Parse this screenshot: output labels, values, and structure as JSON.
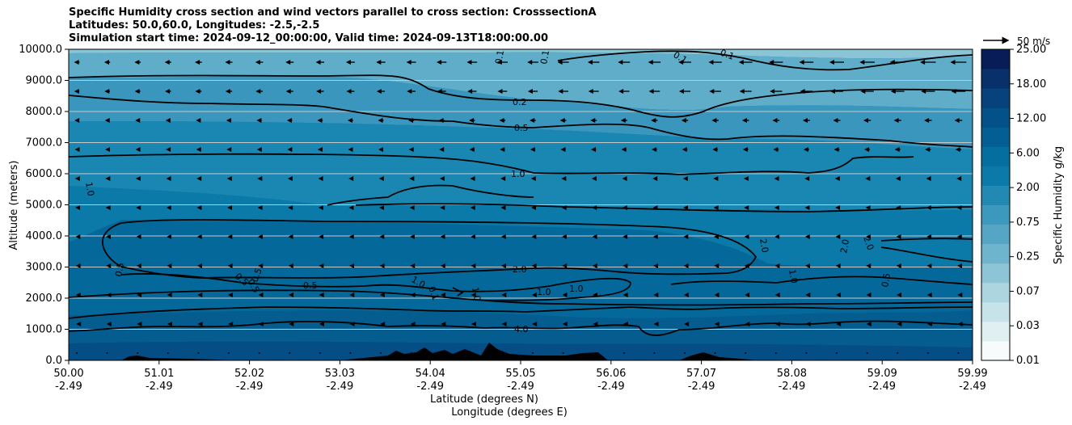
{
  "chart_data": {
    "type": "contourf",
    "title_lines": [
      "Specific Humidity cross section and wind vectors parallel to cross section: CrosssectionA",
      "Latitudes: 50.0,60.0, Longitudes: -2.5,-2.5",
      "Simulation start time: 2024-09-12_00:00:00, Valid time: 2024-09-13T18:00:00.00"
    ],
    "ylabel": "Altitude (meters)",
    "xlabel_lines": [
      "Latitude (degrees N)",
      "Longitude (degrees E)"
    ],
    "ylim": [
      0,
      10000
    ],
    "yticks": [
      "0.0",
      "1000.0",
      "2000.0",
      "3000.0",
      "4000.0",
      "5000.0",
      "6000.0",
      "7000.0",
      "8000.0",
      "9000.0",
      "10000.0"
    ],
    "xticks_lat": [
      "50.00",
      "51.01",
      "52.02",
      "53.03",
      "54.04",
      "55.05",
      "56.06",
      "57.07",
      "58.08",
      "59.09",
      "59.99"
    ],
    "xticks_lon": [
      "-2.49",
      "-2.49",
      "-2.49",
      "-2.49",
      "-2.49",
      "-2.49",
      "-2.49",
      "-2.49",
      "-2.49",
      "-2.49",
      "-2.49"
    ],
    "colorbar": {
      "label": "Specific Humidity g/kg",
      "ticks": [
        "0.01",
        "0.03",
        "0.07",
        "0.25",
        "0.75",
        "2.00",
        "6.00",
        "12.00",
        "18.00",
        "25.00"
      ],
      "colors": [
        "#f7fbfc",
        "#e0eff2",
        "#c7e3ea",
        "#acd5e0",
        "#8dc5d6",
        "#6eb4cc",
        "#55a6c4",
        "#3c98bc",
        "#2289b3",
        "#0b7aa8",
        "#046e9e",
        "#035f93",
        "#045089",
        "#07427c",
        "#08316b",
        "#081d58"
      ]
    },
    "contour_labels": [
      "0.1",
      "0.1",
      "0.1",
      "0.1",
      "0.2",
      "0.5",
      "1.0",
      "1.0",
      "2.0",
      "2.0",
      "2.0",
      "2.0",
      "0.5",
      "0.5",
      "0.5",
      "0.5",
      "0.5",
      "1.0",
      "0.1",
      "1.0",
      "1.0",
      "1.0",
      "1.0",
      "4.0",
      "0.5"
    ],
    "quiver_key": "50 m/s",
    "wind_direction": "southward (leftward arrows), strongest at upper levels"
  }
}
